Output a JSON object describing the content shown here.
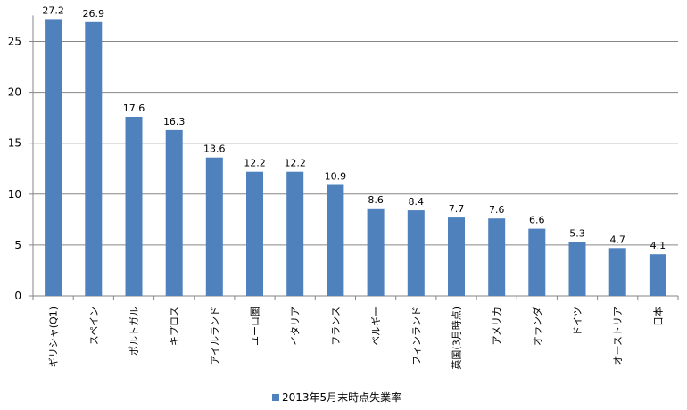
{
  "chart_data": {
    "type": "bar",
    "categories": [
      "ギリシャ(Q1)",
      "スペイン",
      "ポルトガル",
      "キプロス",
      "アイルランド",
      "ユーロ圏",
      "イタリア",
      "フランス",
      "ベルギー",
      "フィンランド",
      "英国(3月時点)",
      "アメリカ",
      "オランダ",
      "ドイツ",
      "オーストリア",
      "日本"
    ],
    "series": [
      {
        "name": "2013年5月末時点失業率",
        "color": "#4F81BD",
        "values": [
          27.2,
          26.9,
          17.6,
          16.3,
          13.6,
          12.2,
          12.2,
          10.9,
          8.6,
          8.4,
          7.7,
          7.6,
          6.6,
          5.3,
          4.7,
          4.1
        ]
      }
    ],
    "data_labels": [
      "27.2",
      "26.9",
      "17.6",
      "16.3",
      "13.6",
      "12.2",
      "12.2",
      "10.9",
      "8.6",
      "8.4",
      "7.7",
      "7.6",
      "6.6",
      "5.3",
      "4.7",
      "4.1"
    ],
    "yticks": [
      "0",
      "5",
      "10",
      "15",
      "20",
      "25"
    ],
    "ylim": [
      0,
      27.2
    ],
    "grid": true,
    "legend_position": "bottom",
    "category_label_orientation": "vertical"
  }
}
